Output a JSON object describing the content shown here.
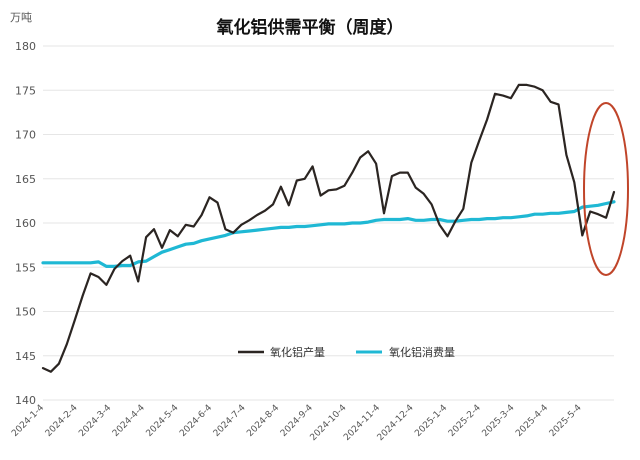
{
  "chart_data": {
    "type": "line",
    "title": "氧化铝供需平衡（周度）",
    "unit_label": "万吨",
    "ylim": [
      140,
      180
    ],
    "yticks": [
      140,
      145,
      150,
      155,
      160,
      165,
      170,
      175,
      180
    ],
    "xlabels": [
      "2024-1-4",
      "2024-2-4",
      "2024-3-4",
      "2024-4-4",
      "2024-5-4",
      "2024-6-4",
      "2024-7-4",
      "2024-8-4",
      "2024-9-4",
      "2024-10-4",
      "2024-11-4",
      "2024-12-4",
      "2025-1-4",
      "2025-2-4",
      "2025-3-4",
      "2025-4-4",
      "2025-5-4"
    ],
    "grid": "horizontal",
    "legend_position": "bottom-right",
    "series": [
      {
        "name": "氧化铝产量",
        "color": "#2b2522",
        "values": [
          143.6,
          143.2,
          144.1,
          146.3,
          149.0,
          151.8,
          154.3,
          153.9,
          153.0,
          154.8,
          155.7,
          156.3,
          153.4,
          158.4,
          159.3,
          157.2,
          159.2,
          158.5,
          159.8,
          159.6,
          160.9,
          162.9,
          162.3,
          159.3,
          158.9,
          159.8,
          160.3,
          160.9,
          161.4,
          162.1,
          164.1,
          162.0,
          164.8,
          165.0,
          166.4,
          163.1,
          163.7,
          163.8,
          164.2,
          165.7,
          167.4,
          168.1,
          166.7,
          161.1,
          165.3,
          165.7,
          165.7,
          164.0,
          163.3,
          162.1,
          159.8,
          158.5,
          160.2,
          161.6,
          166.8,
          169.3,
          171.7,
          174.6,
          174.4,
          174.1,
          175.6,
          175.6,
          175.4,
          175.0,
          173.7,
          173.4,
          167.7,
          164.6,
          158.6,
          161.3,
          161.0,
          160.6,
          163.5
        ]
      },
      {
        "name": "氧化铝消费量",
        "color": "#1fb8d4",
        "values": [
          155.5,
          155.5,
          155.5,
          155.5,
          155.5,
          155.5,
          155.5,
          155.6,
          155.1,
          155.1,
          155.2,
          155.2,
          155.6,
          155.7,
          156.2,
          156.7,
          157.0,
          157.3,
          157.6,
          157.7,
          158.0,
          158.2,
          158.4,
          158.6,
          158.9,
          159.0,
          159.1,
          159.2,
          159.3,
          159.4,
          159.5,
          159.5,
          159.6,
          159.6,
          159.7,
          159.8,
          159.9,
          159.9,
          159.9,
          160.0,
          160.0,
          160.1,
          160.3,
          160.4,
          160.4,
          160.4,
          160.5,
          160.3,
          160.3,
          160.4,
          160.4,
          160.2,
          160.2,
          160.3,
          160.4,
          160.4,
          160.5,
          160.5,
          160.6,
          160.6,
          160.7,
          160.8,
          161.0,
          161.0,
          161.1,
          161.1,
          161.2,
          161.3,
          161.8,
          161.9,
          162.0,
          162.2,
          162.4
        ]
      }
    ],
    "annotation": {
      "shape": "ellipse",
      "color": "#c0452a"
    }
  }
}
